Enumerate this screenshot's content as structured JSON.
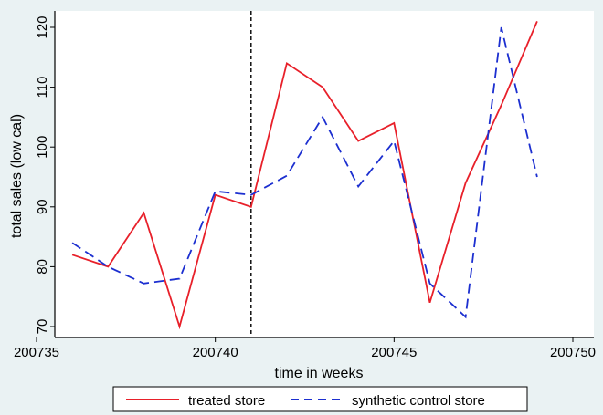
{
  "colors": {
    "background": "#eaf2f3",
    "plot_area": "#ffffff",
    "treated": "#e8202a",
    "synthetic": "#1c2fd0",
    "vline": "#000000"
  },
  "chart_data": {
    "type": "line",
    "title": "",
    "xlabel": "time in weeks",
    "ylabel": "total sales (low cal)",
    "xlim": [
      200735,
      200750
    ],
    "ylim": [
      70,
      120
    ],
    "xticks": [
      200735,
      200740,
      200745,
      200750
    ],
    "yticks": [
      70,
      80,
      90,
      100,
      110,
      120
    ],
    "grid": false,
    "vline": 200741,
    "legend_position": "bottom",
    "series": [
      {
        "name": "treated store",
        "style": "solid",
        "x": [
          200736,
          200737,
          200738,
          200739,
          200740,
          200741,
          200742,
          200743,
          200744,
          200745,
          200746,
          200747,
          200748,
          200749
        ],
        "y": [
          82,
          80,
          89,
          70,
          92,
          90,
          114,
          110,
          101,
          104,
          74,
          94,
          107,
          121
        ]
      },
      {
        "name": "synthetic control store",
        "style": "dashed",
        "x": [
          200736,
          200737,
          200738,
          200739,
          200740,
          200741,
          200742,
          200743,
          200744,
          200745,
          200746,
          200747,
          200748,
          200749
        ],
        "y": [
          84,
          80,
          77.2,
          78,
          92.6,
          92,
          95.2,
          105,
          93.4,
          101,
          77.2,
          71.6,
          120,
          95
        ]
      }
    ]
  }
}
